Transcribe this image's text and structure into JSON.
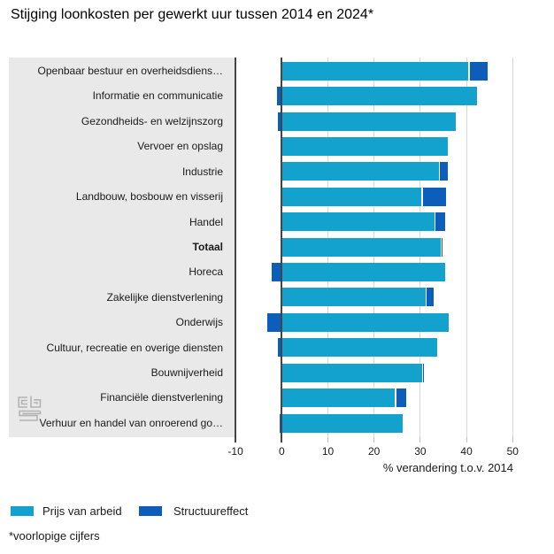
{
  "title": "Stijging loonkosten per gewerkt uur tussen 2014 en 2024*",
  "footnote": "*voorlopige cijfers",
  "chart_data": {
    "type": "bar",
    "orientation": "horizontal",
    "stacked": true,
    "title": "Stijging loonkosten per gewerkt uur tussen 2014 en 2024*",
    "xlabel": "% verandering t.o.v. 2014",
    "xticks": [
      -10,
      0,
      10,
      20,
      30,
      40,
      50
    ],
    "xlim": [
      -10,
      55
    ],
    "grid": true,
    "legend_position": "bottom",
    "bold_category": "Totaal",
    "categories": [
      "Openbaar bestuur en overheidsdiens…",
      "Informatie en communicatie",
      "Gezondheids- en welzijnszorg",
      "Vervoer en opslag",
      "Industrie",
      "Landbouw, bosbouw en visserij",
      "Handel",
      "Totaal",
      "Horeca",
      "Zakelijke dienstverlening",
      "Onderwijs",
      "Cultuur, recreatie en overige diensten",
      "Bouwnijverheid",
      "Financiële dienstverlening",
      "Verhuur en handel van onroerend go…"
    ],
    "series": [
      {
        "name": "Prijs van arbeid",
        "color": "#12a2cd",
        "values": [
          40.4,
          42.3,
          37.6,
          36.0,
          34.0,
          30.3,
          33.0,
          34.4,
          35.4,
          31.1,
          36.1,
          33.6,
          30.4,
          24.5,
          26.2
        ]
      },
      {
        "name": "Structuureffect",
        "color": "#0d5eba",
        "values": [
          4.2,
          -1.0,
          -0.8,
          0,
          1.9,
          5.2,
          2.3,
          0.4,
          -2.2,
          1.8,
          -3.1,
          -0.8,
          0.3,
          2.5,
          -0.5
        ]
      }
    ]
  },
  "legend": {
    "items": [
      {
        "label": "Prijs van arbeid"
      },
      {
        "label": "Structuureffect"
      }
    ]
  },
  "logo_name": "cbs-logo"
}
